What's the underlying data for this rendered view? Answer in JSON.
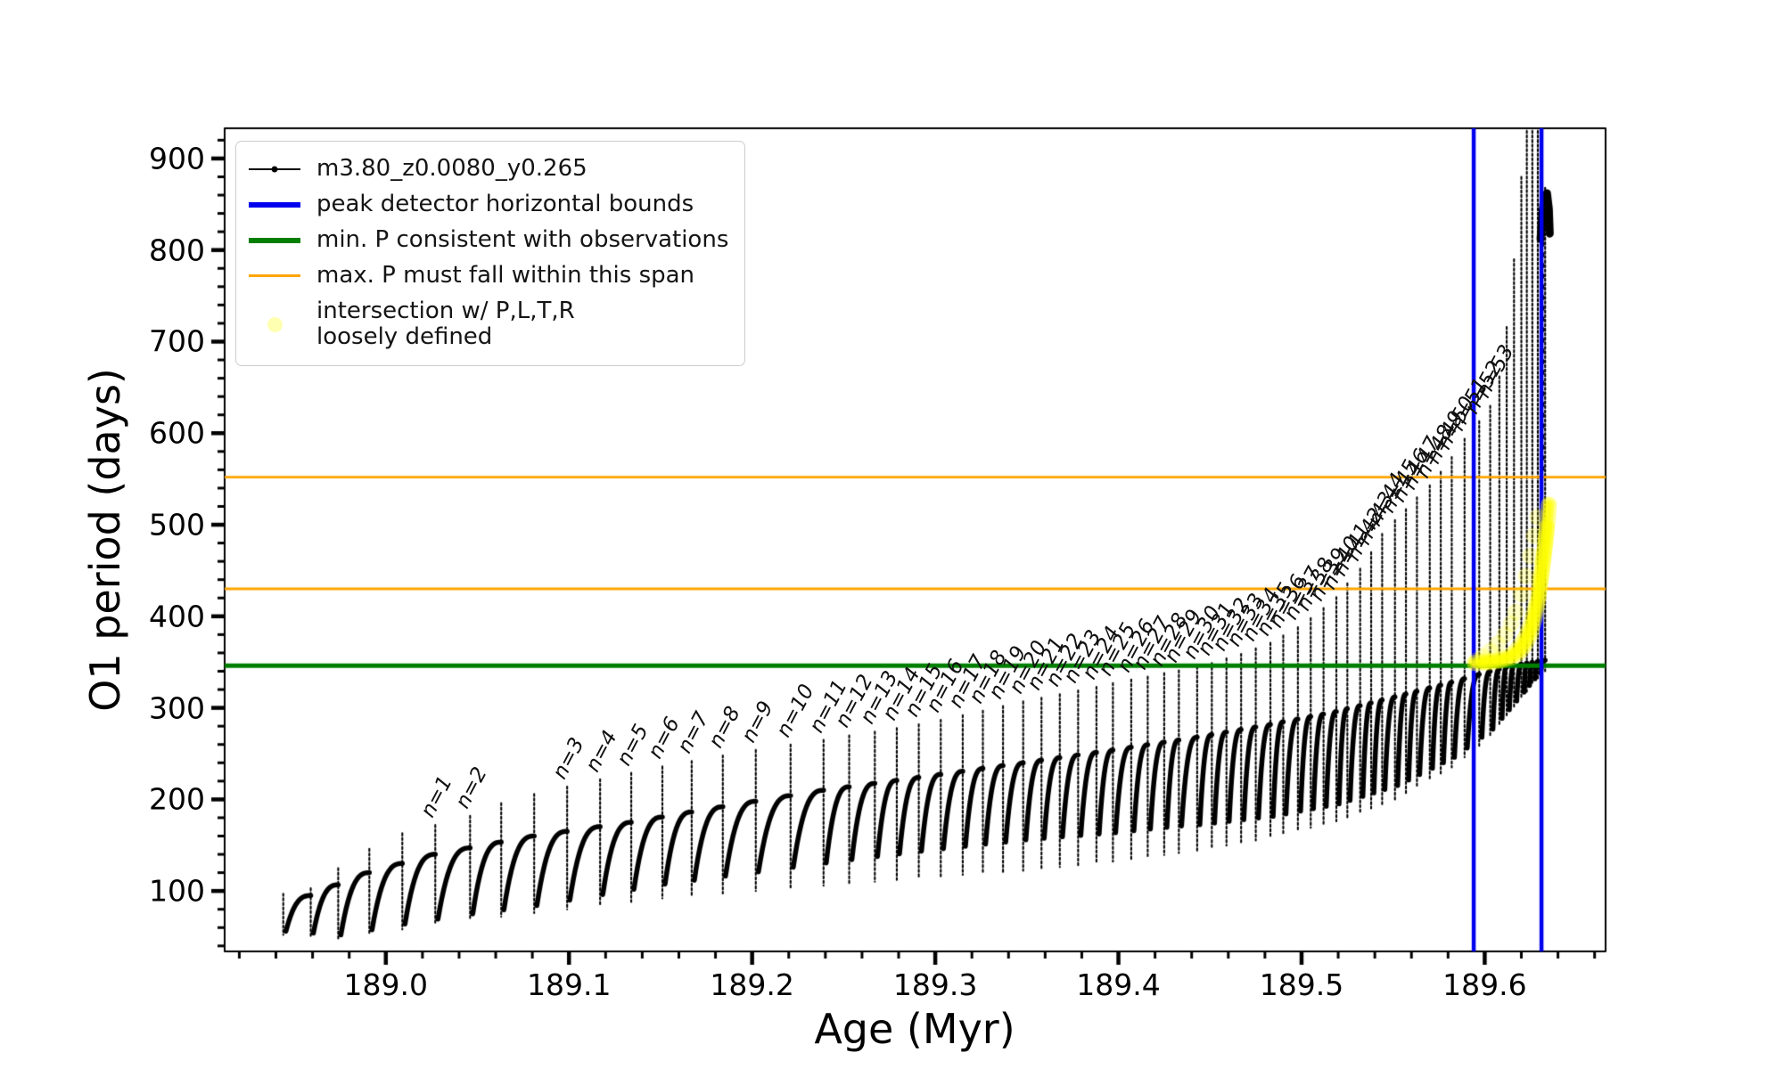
{
  "chart_data": {
    "type": "line",
    "title": "",
    "xlabel": "Age (Myr)",
    "ylabel": "O1 period (days)",
    "xlim": [
      188.912,
      189.666
    ],
    "ylim": [
      34,
      933
    ],
    "grid": false,
    "legend_position": "upper left",
    "x_ticks": [
      {
        "v": 189.0,
        "label": "189.0"
      },
      {
        "v": 189.1,
        "label": "189.1"
      },
      {
        "v": 189.2,
        "label": "189.2"
      },
      {
        "v": 189.3,
        "label": "189.3"
      },
      {
        "v": 189.4,
        "label": "189.4"
      },
      {
        "v": 189.5,
        "label": "189.5"
      },
      {
        "v": 189.6,
        "label": "189.6"
      }
    ],
    "y_ticks": [
      {
        "v": 100,
        "label": "100"
      },
      {
        "v": 200,
        "label": "200"
      },
      {
        "v": 300,
        "label": "300"
      },
      {
        "v": 400,
        "label": "400"
      },
      {
        "v": 500,
        "label": "500"
      },
      {
        "v": 600,
        "label": "600"
      },
      {
        "v": 700,
        "label": "700"
      },
      {
        "v": 800,
        "label": "800"
      },
      {
        "v": 900,
        "label": "900"
      }
    ],
    "x_minor_step": 0.02,
    "y_minor_step": 20,
    "series_name": "m3.80_z0.0080_y0.265",
    "series_color": "#000000",
    "hlines": [
      {
        "name": "min. P consistent with observations",
        "y": 346,
        "color": "#007f00",
        "width": 5
      },
      {
        "name": "max. P span upper",
        "y": 552,
        "color": "#ffa500",
        "width": 2.8
      },
      {
        "name": "max. P span lower",
        "y": 430,
        "color": "#ffa500",
        "width": 2.8
      }
    ],
    "vlines": [
      {
        "name": "peak detector left bound",
        "x": 189.594,
        "color": "#0000ee",
        "width": 4.5
      },
      {
        "name": "peak detector right bound",
        "x": 189.631,
        "color": "#0000ee",
        "width": 4.5
      }
    ],
    "peaks": [
      [
        null,
        188.944,
        97
      ],
      [
        null,
        188.959,
        103
      ],
      [
        null,
        188.974,
        125
      ],
      [
        null,
        188.991,
        146
      ],
      [
        null,
        189.009,
        163
      ],
      [
        1,
        189.027,
        172
      ],
      [
        2,
        189.046,
        182
      ],
      [
        null,
        189.063,
        196
      ],
      [
        null,
        189.081,
        206
      ],
      [
        3,
        189.099,
        214
      ],
      [
        4,
        189.117,
        222
      ],
      [
        5,
        189.134,
        229
      ],
      [
        6,
        189.151,
        236
      ],
      [
        7,
        189.167,
        242
      ],
      [
        8,
        189.184,
        248
      ],
      [
        9,
        189.202,
        254
      ],
      [
        10,
        189.221,
        260
      ],
      [
        11,
        189.239,
        265
      ],
      [
        12,
        189.253,
        270
      ],
      [
        13,
        189.267,
        274
      ],
      [
        14,
        189.279,
        278
      ],
      [
        15,
        189.291,
        282
      ],
      [
        16,
        189.303,
        287
      ],
      [
        17,
        189.315,
        292
      ],
      [
        18,
        189.326,
        297
      ],
      [
        19,
        189.337,
        302
      ],
      [
        20,
        189.348,
        307
      ],
      [
        21,
        189.358,
        311
      ],
      [
        22,
        189.368,
        315
      ],
      [
        23,
        189.378,
        319
      ],
      [
        24,
        189.388,
        323
      ],
      [
        25,
        189.397,
        327
      ],
      [
        26,
        189.407,
        331
      ],
      [
        27,
        189.416,
        334
      ],
      [
        28,
        189.425,
        338
      ],
      [
        29,
        189.433,
        341
      ],
      [
        30,
        189.443,
        345
      ],
      [
        31,
        189.451,
        349
      ],
      [
        32,
        189.459,
        354
      ],
      [
        33,
        189.467,
        359
      ],
      [
        34,
        189.475,
        365
      ],
      [
        35,
        189.483,
        371
      ],
      [
        36,
        189.49,
        379
      ],
      [
        37,
        189.498,
        388
      ],
      [
        38,
        189.505,
        398
      ],
      [
        39,
        189.512,
        409
      ],
      [
        40,
        189.519,
        421
      ],
      [
        41,
        189.525,
        436
      ],
      [
        42,
        189.532,
        452
      ],
      [
        43,
        189.538,
        470
      ],
      [
        44,
        189.544,
        490
      ],
      [
        45,
        189.551,
        505
      ],
      [
        46,
        189.557,
        517
      ],
      [
        47,
        189.563,
        530
      ],
      [
        48,
        189.57,
        543
      ],
      [
        49,
        189.576,
        558
      ],
      [
        50,
        189.582,
        574
      ],
      [
        51,
        189.589,
        594
      ],
      [
        52,
        189.597,
        613
      ],
      [
        53,
        189.603,
        630
      ],
      [
        null,
        189.608,
        662
      ],
      [
        null,
        189.612,
        716
      ],
      [
        null,
        189.616,
        790
      ],
      [
        null,
        189.62,
        880
      ],
      [
        null,
        189.623,
        950
      ],
      [
        null,
        189.626,
        950
      ],
      [
        null,
        189.629,
        950
      ],
      [
        null,
        189.633,
        868
      ]
    ],
    "peak_label_format": "n={n}",
    "tail_envelope": [
      [
        188.944,
        52
      ],
      [
        188.975,
        47
      ],
      [
        189.009,
        58
      ],
      [
        189.046,
        68
      ],
      [
        189.099,
        80
      ],
      [
        189.151,
        92
      ],
      [
        189.202,
        100
      ],
      [
        189.253,
        108
      ],
      [
        189.303,
        116
      ],
      [
        189.348,
        122
      ],
      [
        189.397,
        132
      ],
      [
        189.443,
        144
      ],
      [
        189.483,
        158
      ],
      [
        189.519,
        176
      ],
      [
        189.551,
        200
      ],
      [
        189.582,
        235
      ],
      [
        189.603,
        268
      ],
      [
        189.612,
        290
      ],
      [
        189.62,
        310
      ],
      [
        189.626,
        325
      ],
      [
        189.633,
        340
      ]
    ],
    "base_envelope": [
      [
        188.944,
        85
      ],
      [
        188.959,
        95
      ],
      [
        188.991,
        120
      ],
      [
        189.027,
        140
      ],
      [
        189.081,
        160
      ],
      [
        189.134,
        175
      ],
      [
        189.184,
        192
      ],
      [
        189.239,
        210
      ],
      [
        189.291,
        224
      ],
      [
        189.348,
        240
      ],
      [
        189.397,
        254
      ],
      [
        189.443,
        268
      ],
      [
        189.483,
        282
      ],
      [
        189.519,
        296
      ],
      [
        189.551,
        312
      ],
      [
        189.582,
        328
      ],
      [
        189.603,
        340
      ],
      [
        189.617,
        347
      ],
      [
        189.633,
        352
      ]
    ],
    "cusp_gap": [
      [
        188.944,
        4
      ],
      [
        189.08,
        8
      ],
      [
        189.25,
        26
      ],
      [
        189.35,
        34
      ],
      [
        189.43,
        30
      ],
      [
        189.48,
        24
      ],
      [
        189.545,
        16
      ],
      [
        189.59,
        10
      ],
      [
        189.633,
        6
      ]
    ],
    "yellow_scatter": {
      "name": "intersection w/ P,L,T,R loosely defined",
      "color": "#ffff00",
      "strand1": [
        [
          189.5945,
          349
        ],
        [
          189.598,
          350
        ],
        [
          189.602,
          351
        ],
        [
          189.606,
          352
        ],
        [
          189.61,
          354
        ],
        [
          189.614,
          357
        ],
        [
          189.617,
          362
        ],
        [
          189.62,
          369
        ],
        [
          189.6225,
          378
        ],
        [
          189.625,
          390
        ],
        [
          189.627,
          404
        ],
        [
          189.629,
          420
        ],
        [
          189.6305,
          440
        ],
        [
          189.632,
          462
        ],
        [
          189.6333,
          484
        ],
        [
          189.6343,
          505
        ],
        [
          189.635,
          522
        ]
      ],
      "strand2": [
        [
          189.6,
          349
        ],
        [
          189.605,
          350
        ],
        [
          189.61,
          352
        ],
        [
          189.615,
          355
        ],
        [
          189.619,
          360
        ],
        [
          189.622,
          368
        ],
        [
          189.625,
          380
        ],
        [
          189.6275,
          398
        ],
        [
          189.6295,
          420
        ],
        [
          189.631,
          445
        ],
        [
          189.6325,
          470
        ],
        [
          189.634,
          498
        ]
      ],
      "stray_points": [
        [
          189.596,
          352
        ],
        [
          189.599,
          356
        ],
        [
          189.603,
          362
        ],
        [
          189.607,
          370
        ],
        [
          189.611,
          380
        ],
        [
          189.6145,
          392
        ],
        [
          189.617,
          405
        ],
        [
          189.62,
          424
        ],
        [
          189.6225,
          444
        ],
        [
          189.625,
          466
        ],
        [
          189.627,
          488
        ],
        [
          189.629,
          508
        ]
      ]
    },
    "end_hook": [
      [
        189.6305,
        812
      ],
      [
        189.6315,
        840
      ],
      [
        189.6325,
        858
      ],
      [
        189.634,
        862
      ],
      [
        189.635,
        845
      ],
      [
        189.6355,
        818
      ]
    ]
  },
  "legend": {
    "items": [
      {
        "type": "line-marker",
        "color": "#000000",
        "thickness": 2,
        "label": "m3.80_z0.0080_y0.265"
      },
      {
        "type": "line",
        "color": "#0000ee",
        "thickness": 6,
        "label": "peak detector horizontal bounds"
      },
      {
        "type": "line",
        "color": "#007f00",
        "thickness": 6,
        "label": "min. P consistent with observations"
      },
      {
        "type": "line",
        "color": "#ffa500",
        "thickness": 3,
        "label": "max. P must fall within this span"
      },
      {
        "type": "scatter",
        "color": "rgba(255,255,0,0.3)",
        "label": "intersection w/ P,L,T,R",
        "label2": "loosely defined"
      }
    ]
  }
}
